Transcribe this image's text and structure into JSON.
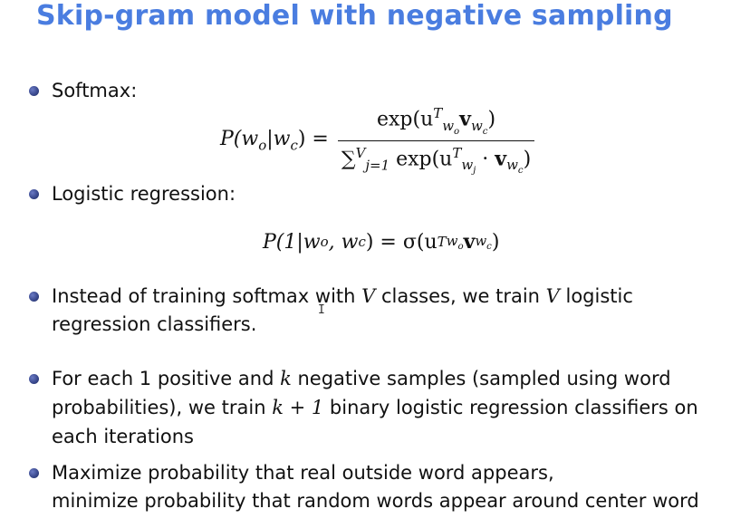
{
  "slide": {
    "title": "Skip-gram model with negative sampling",
    "bullets": {
      "softmax": {
        "label": "Softmax:"
      },
      "logistic": {
        "label": "Logistic regression:"
      },
      "instead": {
        "line1_a": "Instead of training softmax with ",
        "var_v1": "V",
        "line1_b": " classes, we train ",
        "var_v2": "V",
        "line1_c": " logistic",
        "line2": "regression classifiers."
      },
      "foreach": {
        "line1_a": "For each 1 positive and ",
        "var_k": "k",
        "line1_b": " negative samples (sampled using word",
        "line2_a": "probabilities), we train ",
        "expr_k1": "k + 1",
        "line2_b": " binary logistic regression classifiers on",
        "line3": "each iterations"
      },
      "maximize": {
        "line1": "Maximize probability that real outside word appears,",
        "line2": "minimize probability that random words appear around center word"
      }
    },
    "equations": {
      "softmax_lhs": "P(w",
      "softmax_lhs_sub": "o",
      "softmax_lhs_mid": "|w",
      "softmax_lhs_sub2": "c",
      "softmax_lhs_end": ") =",
      "softmax_num": "exp(u",
      "softmax_den_sum": "∑",
      "softmax_den_sup": "V",
      "softmax_den_sub": "j=1",
      "softmax_den": "exp(u",
      "logistic_lhs": "P(1|w",
      "logistic_mid": ", w",
      "logistic_rhs": ") = σ(u"
    }
  }
}
